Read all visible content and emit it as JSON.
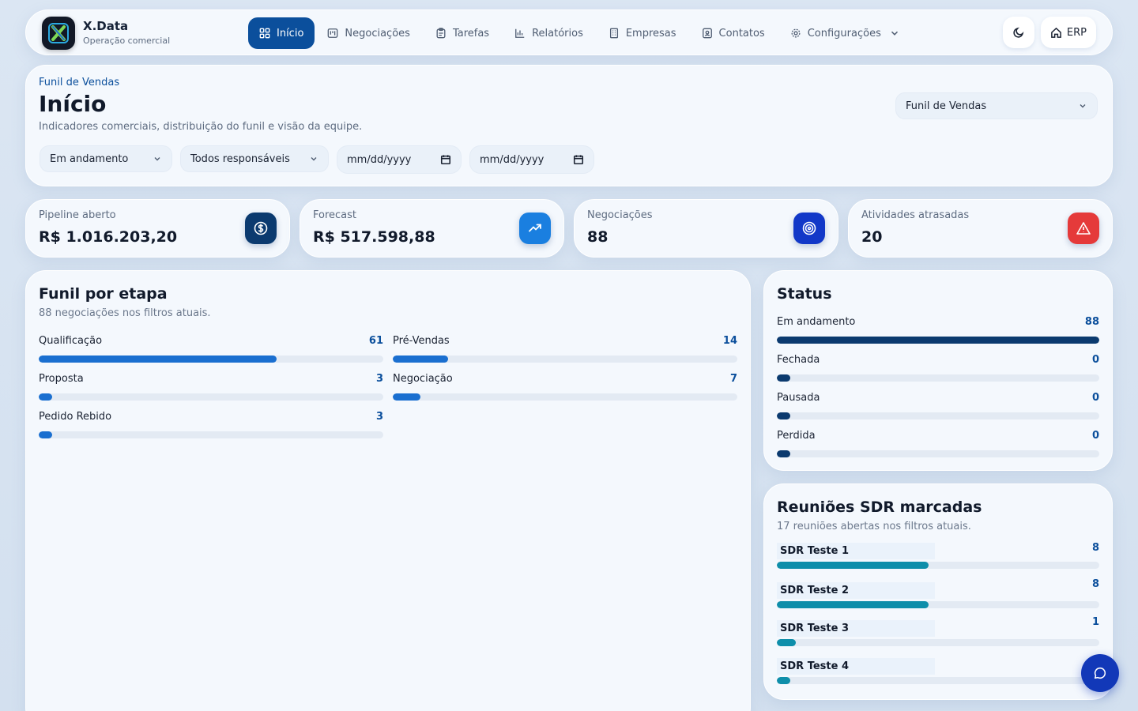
{
  "brand": {
    "name": "X.Data",
    "subtitle": "Operação comercial"
  },
  "nav": {
    "items": [
      {
        "label": "Início",
        "icon": "grid-icon",
        "active": true
      },
      {
        "label": "Negociações",
        "icon": "kanban-icon"
      },
      {
        "label": "Tarefas",
        "icon": "clipboard-icon"
      },
      {
        "label": "Relatórios",
        "icon": "bar-chart-icon"
      },
      {
        "label": "Empresas",
        "icon": "building-icon"
      },
      {
        "label": "Contatos",
        "icon": "contact-icon"
      },
      {
        "label": "Configurações",
        "icon": "gear-icon"
      }
    ],
    "erp_label": "ERP"
  },
  "header": {
    "breadcrumb": "Funil de Vendas",
    "title": "Início",
    "description": "Indicadores comerciais, distribuição do funil e visão da equipe.",
    "funnel_select": "Funil de Vendas",
    "filters": {
      "status": "Em andamento",
      "owner": "Todos responsáveis",
      "date_from_placeholder": "mm/dd/yyyy",
      "date_to_placeholder": "mm/dd/yyyy"
    }
  },
  "kpis": [
    {
      "label": "Pipeline aberto",
      "value": "R$ 1.016.203,20",
      "icon": "dollar-icon",
      "color": "#0b3a6f"
    },
    {
      "label": "Forecast",
      "value": "R$ 517.598,88",
      "icon": "trend-up-icon",
      "color": "#1a7fe0"
    },
    {
      "label": "Negociações",
      "value": "88",
      "icon": "target-icon",
      "color": "#1238c8"
    },
    {
      "label": "Atividades atrasadas",
      "value": "20",
      "icon": "alert-icon",
      "color": "#e53a3a"
    }
  ],
  "funnel": {
    "title": "Funil por etapa",
    "subtitle": "88 negociações nos filtros atuais.",
    "stages": [
      {
        "name": "Qualificação",
        "count": "61",
        "fraction": 0.69
      },
      {
        "name": "Pré-Vendas",
        "count": "14",
        "fraction": 0.16
      },
      {
        "name": "Proposta",
        "count": "3",
        "fraction": 0.03
      },
      {
        "name": "Negociação",
        "count": "7",
        "fraction": 0.08
      },
      {
        "name": "Pedido Rebido",
        "count": "3",
        "fraction": 0.03
      }
    ]
  },
  "status": {
    "title": "Status",
    "items": [
      {
        "name": "Em andamento",
        "count": "88",
        "fraction": 1.0
      },
      {
        "name": "Fechada",
        "count": "0",
        "fraction": 0
      },
      {
        "name": "Pausada",
        "count": "0",
        "fraction": 0
      },
      {
        "name": "Perdida",
        "count": "0",
        "fraction": 0
      }
    ]
  },
  "sdr": {
    "title": "Reuniões SDR marcadas",
    "subtitle": "17 reuniões abertas nos filtros atuais.",
    "items": [
      {
        "name": "SDR Teste 1",
        "count": "8",
        "fraction": 0.47
      },
      {
        "name": "SDR Teste 2",
        "count": "8",
        "fraction": 0.47
      },
      {
        "name": "SDR Teste 3",
        "count": "1",
        "fraction": 0.06
      },
      {
        "name": "SDR Teste 4",
        "count": "",
        "fraction": 0.03
      }
    ]
  }
}
